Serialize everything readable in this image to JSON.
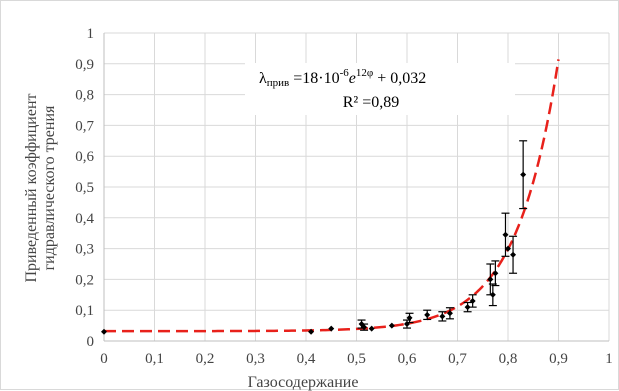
{
  "chart_data": {
    "type": "scatter",
    "xlabel": "Газосодержание",
    "ylabel_line1": "Приведенный коэффициент",
    "ylabel_line2": "гидравлического трения",
    "xlim": [
      0,
      1
    ],
    "ylim": [
      0,
      1
    ],
    "x_ticks": [
      "0",
      "0,1",
      "0,2",
      "0,3",
      "0,4",
      "0,5",
      "0,6",
      "0,7",
      "0,8",
      "0,9",
      "1"
    ],
    "y_ticks": [
      "0",
      "0,1",
      "0,2",
      "0,3",
      "0,4",
      "0,5",
      "0,6",
      "0,7",
      "0,8",
      "0,9",
      "1"
    ],
    "grid": true,
    "annotation": {
      "lambda": "λ",
      "lambda_sub": "прив",
      "eq_mid": " =18·10",
      "exp1": "-6",
      "e_char": "e",
      "exp2": "12φ",
      "eq_tail": " + 0,032",
      "r2": "R² =0,89"
    },
    "fit": {
      "a": 1.8e-05,
      "b": 12,
      "c": 0.032,
      "x_range": [
        0,
        0.9
      ],
      "color": "#e8211b",
      "style": "dashed"
    },
    "points": [
      {
        "x": 0.0,
        "y": 0.03,
        "err": 0
      },
      {
        "x": 0.41,
        "y": 0.03,
        "err": 0
      },
      {
        "x": 0.45,
        "y": 0.04,
        "err": 0
      },
      {
        "x": 0.51,
        "y": 0.055,
        "err": 0.013
      },
      {
        "x": 0.515,
        "y": 0.045,
        "err": 0.01
      },
      {
        "x": 0.53,
        "y": 0.04,
        "err": 0
      },
      {
        "x": 0.57,
        "y": 0.05,
        "err": 0
      },
      {
        "x": 0.6,
        "y": 0.055,
        "err": 0.013
      },
      {
        "x": 0.605,
        "y": 0.075,
        "err": 0.015
      },
      {
        "x": 0.64,
        "y": 0.085,
        "err": 0.015
      },
      {
        "x": 0.67,
        "y": 0.08,
        "err": 0.015
      },
      {
        "x": 0.685,
        "y": 0.09,
        "err": 0.018
      },
      {
        "x": 0.72,
        "y": 0.11,
        "err": 0.015
      },
      {
        "x": 0.73,
        "y": 0.13,
        "err": 0.02
      },
      {
        "x": 0.765,
        "y": 0.2,
        "err": 0.05
      },
      {
        "x": 0.77,
        "y": 0.15,
        "err": 0.035
      },
      {
        "x": 0.775,
        "y": 0.22,
        "err": 0.04
      },
      {
        "x": 0.795,
        "y": 0.345,
        "err": 0.07
      },
      {
        "x": 0.8,
        "y": 0.3,
        "err": 0
      },
      {
        "x": 0.81,
        "y": 0.28,
        "err": 0.06
      },
      {
        "x": 0.83,
        "y": 0.54,
        "err": 0.11
      }
    ]
  }
}
